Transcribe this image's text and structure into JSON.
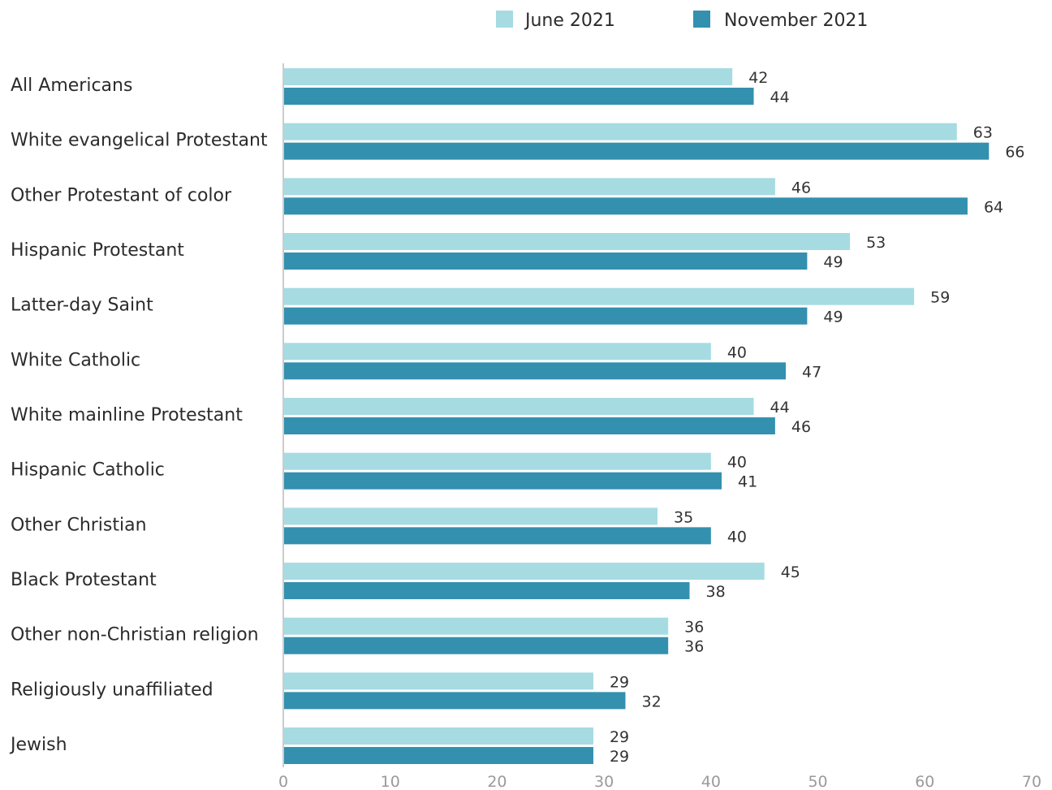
{
  "colors": {
    "june": "#a6dbe2",
    "november": "#3390af",
    "axis": "#cccccc"
  },
  "legend": [
    {
      "label": "June 2021",
      "color": "#a6dbe2"
    },
    {
      "label": "November 2021",
      "color": "#3390af"
    }
  ],
  "chart_data": {
    "type": "bar",
    "orientation": "horizontal",
    "categories": [
      "All Americans",
      "White evangelical Protestant",
      "Other Protestant of color",
      "Hispanic Protestant",
      "Latter-day Saint",
      "White Catholic",
      "White mainline Protestant",
      "Hispanic Catholic",
      "Other Christian",
      "Black Protestant",
      "Other non-Christian religion",
      "Religiously unaffiliated",
      "Jewish"
    ],
    "series": [
      {
        "name": "June 2021",
        "values": [
          42,
          63,
          46,
          53,
          59,
          40,
          44,
          40,
          35,
          45,
          36,
          29,
          29
        ]
      },
      {
        "name": "November 2021",
        "values": [
          44,
          66,
          64,
          49,
          49,
          47,
          46,
          41,
          40,
          38,
          36,
          32,
          29
        ]
      }
    ],
    "xlim": [
      0,
      70
    ],
    "xticks": [
      0,
      10,
      20,
      30,
      40,
      50,
      60,
      70
    ],
    "legend_position": "top",
    "grid": false
  }
}
